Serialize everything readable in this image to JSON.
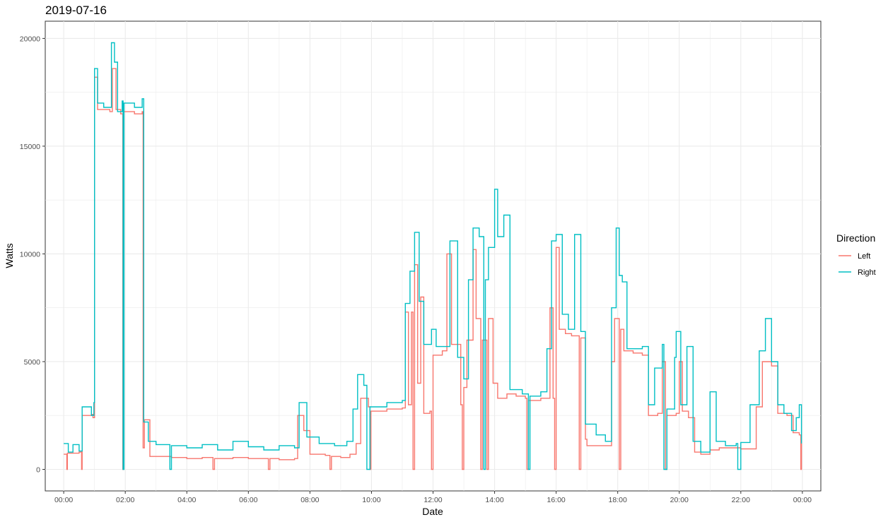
{
  "chart_data": {
    "type": "line",
    "title": "2019-07-16",
    "xlabel": "Date",
    "ylabel": "Watts",
    "x_unit": "hours",
    "xlim": [
      -0.6,
      24.6
    ],
    "ylim": [
      -1000,
      20800
    ],
    "x_ticks": [
      0,
      2,
      4,
      6,
      8,
      10,
      12,
      14,
      16,
      18,
      20,
      22,
      24
    ],
    "x_tick_labels": [
      "00:00",
      "02:00",
      "04:00",
      "06:00",
      "08:00",
      "10:00",
      "12:00",
      "14:00",
      "16:00",
      "18:00",
      "20:00",
      "22:00",
      "00:00"
    ],
    "y_ticks": [
      0,
      5000,
      10000,
      15000,
      20000
    ],
    "y_tick_labels": [
      "0",
      "5000",
      "10000",
      "15000",
      "20000"
    ],
    "grid": true,
    "legend": {
      "title": "Direction",
      "position": "right"
    },
    "series": [
      {
        "name": "Left",
        "color": "#F8766D",
        "points": [
          [
            0.0,
            700
          ],
          [
            0.1,
            0
          ],
          [
            0.12,
            750
          ],
          [
            0.5,
            800
          ],
          [
            0.58,
            0
          ],
          [
            0.6,
            2500
          ],
          [
            0.9,
            2550
          ],
          [
            0.95,
            2400
          ],
          [
            1.0,
            18200
          ],
          [
            1.1,
            16700
          ],
          [
            1.5,
            16600
          ],
          [
            1.58,
            18600
          ],
          [
            1.7,
            16700
          ],
          [
            1.85,
            16500
          ],
          [
            1.92,
            0
          ],
          [
            1.94,
            16600
          ],
          [
            2.3,
            16500
          ],
          [
            2.55,
            16600
          ],
          [
            2.58,
            1000
          ],
          [
            2.62,
            2300
          ],
          [
            2.8,
            600
          ],
          [
            3.5,
            550
          ],
          [
            4.0,
            500
          ],
          [
            4.5,
            550
          ],
          [
            4.85,
            0
          ],
          [
            4.9,
            500
          ],
          [
            5.5,
            550
          ],
          [
            6.0,
            500
          ],
          [
            6.65,
            0
          ],
          [
            6.7,
            500
          ],
          [
            7.0,
            450
          ],
          [
            7.5,
            500
          ],
          [
            7.6,
            2500
          ],
          [
            7.8,
            1800
          ],
          [
            8.0,
            700
          ],
          [
            8.5,
            650
          ],
          [
            8.65,
            0
          ],
          [
            8.7,
            600
          ],
          [
            9.0,
            550
          ],
          [
            9.3,
            700
          ],
          [
            9.5,
            1200
          ],
          [
            9.65,
            3300
          ],
          [
            9.9,
            2900
          ],
          [
            9.95,
            0
          ],
          [
            9.98,
            2700
          ],
          [
            10.5,
            2800
          ],
          [
            11.0,
            2850
          ],
          [
            11.1,
            7300
          ],
          [
            11.2,
            3000
          ],
          [
            11.3,
            7300
          ],
          [
            11.35,
            0
          ],
          [
            11.4,
            9500
          ],
          [
            11.5,
            4000
          ],
          [
            11.6,
            8000
          ],
          [
            11.7,
            2600
          ],
          [
            11.9,
            2700
          ],
          [
            11.95,
            0
          ],
          [
            12.0,
            5300
          ],
          [
            12.3,
            5500
          ],
          [
            12.45,
            10000
          ],
          [
            12.6,
            5800
          ],
          [
            12.9,
            3000
          ],
          [
            12.95,
            0
          ],
          [
            13.0,
            3800
          ],
          [
            13.1,
            6000
          ],
          [
            13.3,
            10200
          ],
          [
            13.4,
            7000
          ],
          [
            13.55,
            0
          ],
          [
            13.6,
            6000
          ],
          [
            13.75,
            0
          ],
          [
            13.8,
            7000
          ],
          [
            13.95,
            4000
          ],
          [
            14.1,
            3300
          ],
          [
            14.4,
            3500
          ],
          [
            14.7,
            3400
          ],
          [
            15.0,
            3300
          ],
          [
            15.05,
            0
          ],
          [
            15.1,
            3200
          ],
          [
            15.5,
            3300
          ],
          [
            15.8,
            7500
          ],
          [
            15.9,
            3300
          ],
          [
            15.95,
            0
          ],
          [
            16.0,
            10300
          ],
          [
            16.1,
            6500
          ],
          [
            16.3,
            6300
          ],
          [
            16.5,
            6200
          ],
          [
            16.75,
            0
          ],
          [
            16.8,
            6100
          ],
          [
            16.95,
            1400
          ],
          [
            17.0,
            1100
          ],
          [
            17.5,
            1100
          ],
          [
            17.8,
            5000
          ],
          [
            17.9,
            7000
          ],
          [
            18.05,
            0
          ],
          [
            18.1,
            6500
          ],
          [
            18.2,
            5500
          ],
          [
            18.5,
            5400
          ],
          [
            18.8,
            5300
          ],
          [
            19.0,
            2500
          ],
          [
            19.3,
            2600
          ],
          [
            19.45,
            5000
          ],
          [
            19.55,
            0
          ],
          [
            19.6,
            2500
          ],
          [
            19.9,
            2600
          ],
          [
            20.0,
            5000
          ],
          [
            20.1,
            2700
          ],
          [
            20.3,
            2400
          ],
          [
            20.5,
            800
          ],
          [
            20.7,
            700
          ],
          [
            21.0,
            900
          ],
          [
            21.3,
            1000
          ],
          [
            21.7,
            1000
          ],
          [
            22.0,
            950
          ],
          [
            22.5,
            2900
          ],
          [
            22.7,
            5000
          ],
          [
            23.0,
            4800
          ],
          [
            23.2,
            2600
          ],
          [
            23.5,
            2500
          ],
          [
            23.7,
            1700
          ],
          [
            23.9,
            1600
          ],
          [
            23.95,
            0
          ],
          [
            23.97,
            1200
          ]
        ]
      },
      {
        "name": "Right",
        "color": "#00BFC4",
        "points": [
          [
            0.0,
            1200
          ],
          [
            0.15,
            800
          ],
          [
            0.3,
            1150
          ],
          [
            0.5,
            850
          ],
          [
            0.6,
            2900
          ],
          [
            0.9,
            2500
          ],
          [
            0.98,
            3100
          ],
          [
            1.0,
            18600
          ],
          [
            1.1,
            17000
          ],
          [
            1.3,
            16800
          ],
          [
            1.55,
            19800
          ],
          [
            1.65,
            18900
          ],
          [
            1.75,
            16600
          ],
          [
            1.9,
            17100
          ],
          [
            1.93,
            0
          ],
          [
            1.96,
            17000
          ],
          [
            2.3,
            16800
          ],
          [
            2.55,
            17200
          ],
          [
            2.6,
            2200
          ],
          [
            2.75,
            1300
          ],
          [
            3.0,
            1150
          ],
          [
            3.45,
            0
          ],
          [
            3.5,
            1100
          ],
          [
            4.0,
            1000
          ],
          [
            4.5,
            1150
          ],
          [
            5.0,
            900
          ],
          [
            5.5,
            1300
          ],
          [
            6.0,
            1050
          ],
          [
            6.5,
            900
          ],
          [
            7.0,
            1100
          ],
          [
            7.5,
            1000
          ],
          [
            7.65,
            3100
          ],
          [
            7.9,
            1500
          ],
          [
            8.3,
            1200
          ],
          [
            8.8,
            1100
          ],
          [
            9.2,
            1300
          ],
          [
            9.4,
            2800
          ],
          [
            9.55,
            4400
          ],
          [
            9.75,
            3900
          ],
          [
            9.85,
            0
          ],
          [
            9.95,
            2900
          ],
          [
            10.5,
            3100
          ],
          [
            11.0,
            3200
          ],
          [
            11.1,
            7700
          ],
          [
            11.25,
            9200
          ],
          [
            11.4,
            11000
          ],
          [
            11.55,
            7800
          ],
          [
            11.7,
            5800
          ],
          [
            11.95,
            6500
          ],
          [
            12.1,
            5700
          ],
          [
            12.4,
            5700
          ],
          [
            12.55,
            10600
          ],
          [
            12.8,
            5200
          ],
          [
            13.0,
            4200
          ],
          [
            13.15,
            8800
          ],
          [
            13.3,
            11200
          ],
          [
            13.5,
            10800
          ],
          [
            13.65,
            0
          ],
          [
            13.7,
            8800
          ],
          [
            13.8,
            10300
          ],
          [
            14.0,
            13000
          ],
          [
            14.1,
            10800
          ],
          [
            14.3,
            11800
          ],
          [
            14.5,
            3700
          ],
          [
            14.9,
            3500
          ],
          [
            15.1,
            0
          ],
          [
            15.15,
            3400
          ],
          [
            15.5,
            3600
          ],
          [
            15.7,
            5600
          ],
          [
            15.85,
            10600
          ],
          [
            16.0,
            10900
          ],
          [
            16.2,
            7200
          ],
          [
            16.4,
            6500
          ],
          [
            16.6,
            10900
          ],
          [
            16.8,
            6400
          ],
          [
            16.95,
            2100
          ],
          [
            17.3,
            1600
          ],
          [
            17.6,
            1300
          ],
          [
            17.8,
            7500
          ],
          [
            17.95,
            11200
          ],
          [
            18.05,
            9000
          ],
          [
            18.15,
            8700
          ],
          [
            18.3,
            5600
          ],
          [
            18.5,
            5600
          ],
          [
            18.8,
            5700
          ],
          [
            19.0,
            3000
          ],
          [
            19.2,
            4700
          ],
          [
            19.45,
            5800
          ],
          [
            19.5,
            0
          ],
          [
            19.6,
            2800
          ],
          [
            19.85,
            5200
          ],
          [
            19.9,
            6400
          ],
          [
            20.05,
            3000
          ],
          [
            20.25,
            5700
          ],
          [
            20.45,
            1300
          ],
          [
            20.7,
            800
          ],
          [
            21.0,
            3600
          ],
          [
            21.2,
            1300
          ],
          [
            21.5,
            1100
          ],
          [
            21.85,
            1200
          ],
          [
            21.9,
            0
          ],
          [
            22.0,
            1250
          ],
          [
            22.3,
            3000
          ],
          [
            22.6,
            5500
          ],
          [
            22.8,
            7000
          ],
          [
            23.0,
            5000
          ],
          [
            23.2,
            3000
          ],
          [
            23.4,
            2600
          ],
          [
            23.65,
            1800
          ],
          [
            23.8,
            2400
          ],
          [
            23.9,
            3000
          ],
          [
            23.97,
            1200
          ]
        ]
      }
    ]
  }
}
